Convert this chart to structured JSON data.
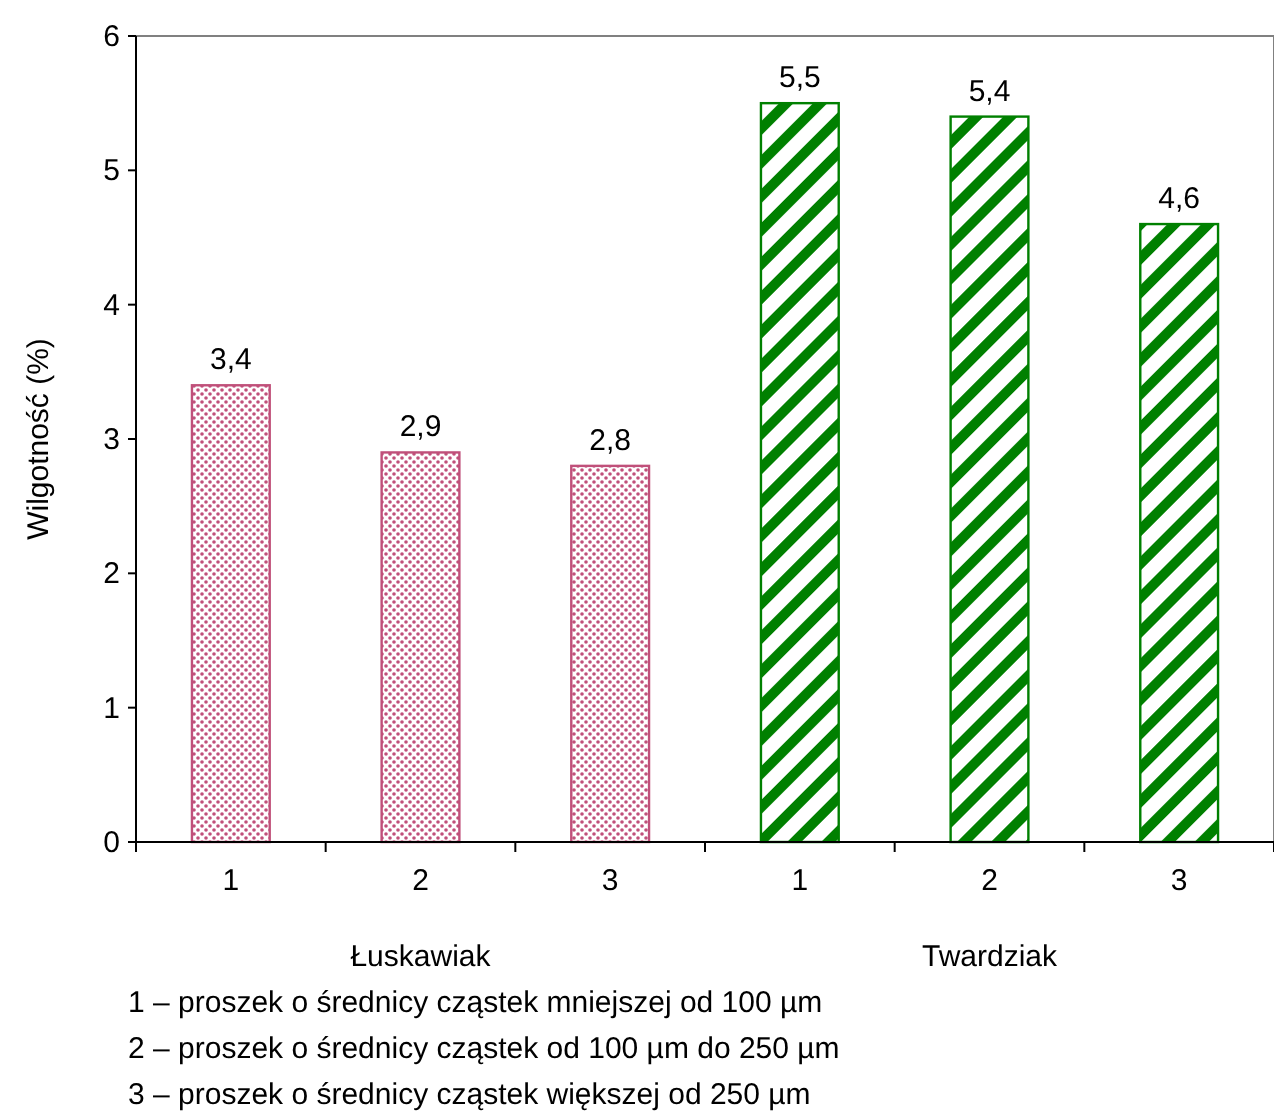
{
  "chart_data": {
    "type": "bar",
    "ylabel": "Wilgotność (%)",
    "categories": [
      "1",
      "2",
      "3",
      "1",
      "2",
      "3"
    ],
    "values": [
      3.4,
      2.9,
      2.8,
      5.5,
      5.4,
      4.6
    ],
    "colors": [
      "#c0507a",
      "#c0507a",
      "#c0507a",
      "#008000",
      "#008000",
      "#008000"
    ],
    "value_labels": [
      "3,4",
      "2,9",
      "2,8",
      "5,5",
      "5,4",
      "4,6"
    ],
    "ylim": [
      0,
      6
    ],
    "yticks": [
      0,
      1,
      2,
      3,
      4,
      5,
      6
    ],
    "grid": false,
    "annotations": [
      "Łuskawiak",
      "Twardziak",
      "1 – proszek o średnicy cząstek mniejszej od 100 µm",
      "2 – proszek o średnicy cząstek od 100 µm do 250 µm",
      "3 – proszek o średnicy cząstek większej od 250 µm"
    ]
  }
}
